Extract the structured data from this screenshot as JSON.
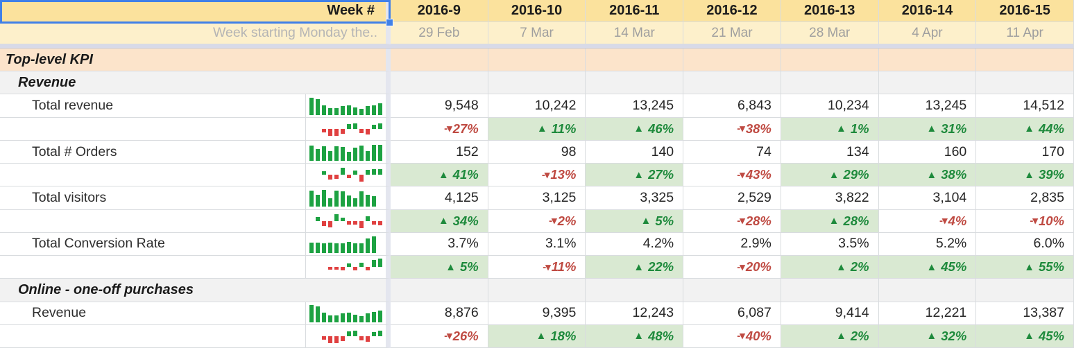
{
  "colors": {
    "header_yellow": "#fbe29d",
    "date_yellow": "#fdf0cb",
    "section_peach": "#fce4cb",
    "section_gray": "#f2f2f2",
    "positive_bg": "#d9e9d2",
    "positive_text": "#1e8a3c",
    "negative_text": "#bf4a42",
    "spark_green": "#1da242",
    "spark_red": "#e04040",
    "selection_blue": "#4080e8"
  },
  "frozen_header": {
    "week_label": "Week #",
    "week_starting_label": "Week starting Monday the..",
    "weeks": [
      "2016-9",
      "2016-10",
      "2016-11",
      "2016-12",
      "2016-13",
      "2016-14",
      "2016-15"
    ],
    "week_start_dates": [
      "29 Feb",
      "7 Mar",
      "14 Mar",
      "21 Mar",
      "28 Mar",
      "4 Apr",
      "11 Apr"
    ]
  },
  "markers": {
    "up": "▲",
    "down": "-▾"
  },
  "rows": [
    {
      "type": "section",
      "label": "Top-level KPI"
    },
    {
      "type": "subsection",
      "label": "Revenue"
    },
    {
      "type": "metric",
      "label": "Total revenue",
      "sparkline": [
        1,
        0.92,
        0.5,
        0.32,
        0.3,
        0.46,
        0.52,
        0.36,
        0.27,
        0.46,
        0.52,
        0.62
      ],
      "values": [
        "9,548",
        "10,242",
        "13,245",
        "6,843",
        "10,234",
        "13,245",
        "14,512"
      ]
    },
    {
      "type": "delta",
      "sparkline": [
        -0.3,
        -0.8,
        -0.8,
        -0.5,
        0.45,
        0.6,
        -0.35,
        -0.6,
        0.4,
        0.6
      ],
      "values": [
        -27,
        11,
        46,
        -38,
        1,
        31,
        44
      ]
    },
    {
      "type": "metric",
      "label": "Total # Orders",
      "sparkline": [
        0.85,
        0.65,
        0.8,
        0.5,
        0.82,
        0.75,
        0.45,
        0.72,
        0.85,
        0.5,
        0.9,
        0.92
      ],
      "values": [
        "152",
        "98",
        "140",
        "74",
        "134",
        "160",
        "170"
      ]
    },
    {
      "type": "delta",
      "sparkline": [
        0.3,
        -0.5,
        -0.35,
        0.75,
        -0.3,
        0.4,
        -0.8,
        0.5,
        0.55,
        0.55
      ],
      "values": [
        41,
        -13,
        27,
        -43,
        29,
        38,
        39
      ]
    },
    {
      "type": "metric",
      "label": "Total visitors",
      "sparkline": [
        0.9,
        0.62,
        0.95,
        0.4,
        0.9,
        0.88,
        0.6,
        0.42,
        0.85,
        0.62,
        0.55
      ],
      "values": [
        "4,125",
        "3,125",
        "3,325",
        "2,529",
        "3,822",
        "3,104",
        "2,835"
      ]
    },
    {
      "type": "delta",
      "sparkline": [
        0.35,
        -0.5,
        -0.7,
        0.75,
        0.3,
        -0.3,
        -0.3,
        -0.8,
        0.5,
        -0.3,
        -0.35
      ],
      "values": [
        34,
        -2,
        5,
        -28,
        28,
        -4,
        -10
      ]
    },
    {
      "type": "metric",
      "label": "Total Conversion Rate",
      "sparkline": [
        0.55,
        0.55,
        0.5,
        0.55,
        0.52,
        0.48,
        0.6,
        0.5,
        0.52,
        0.8,
        0.95
      ],
      "values": [
        "3.7%",
        "3.1%",
        "4.2%",
        "2.9%",
        "3.5%",
        "5.2%",
        "6.0%"
      ]
    },
    {
      "type": "delta",
      "sparkline": [
        -0.2,
        -0.22,
        -0.25,
        0.3,
        -0.3,
        0.35,
        -0.3,
        0.75,
        0.95
      ],
      "values": [
        5,
        -11,
        22,
        -20,
        2,
        45,
        55
      ]
    },
    {
      "type": "subsection",
      "label": "Online - one-off purchases"
    },
    {
      "type": "metric",
      "label": "Revenue",
      "sparkline": [
        1,
        0.9,
        0.52,
        0.33,
        0.3,
        0.46,
        0.5,
        0.36,
        0.28,
        0.46,
        0.55,
        0.65
      ],
      "values": [
        "8,876",
        "9,395",
        "12,243",
        "6,087",
        "9,414",
        "12,221",
        "13,387"
      ]
    },
    {
      "type": "delta",
      "sparkline": [
        -0.3,
        -0.8,
        -0.8,
        -0.5,
        0.45,
        0.6,
        -0.35,
        -0.6,
        0.4,
        0.6
      ],
      "values": [
        -26,
        18,
        48,
        -40,
        2,
        32,
        45
      ]
    }
  ]
}
